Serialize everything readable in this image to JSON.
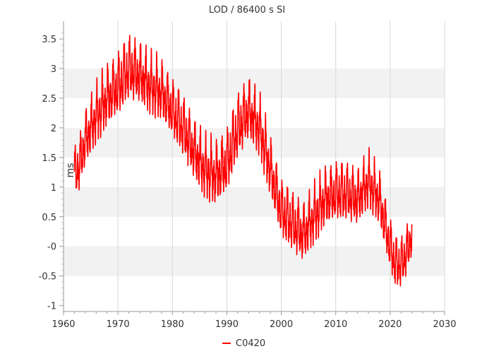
{
  "chart_data": {
    "type": "line",
    "title": "LOD / 86400 s SI",
    "xlabel": "",
    "ylabel": "ms",
    "xlim": [
      1960,
      2030
    ],
    "ylim": [
      -1.1,
      3.8
    ],
    "x_ticks": [
      1960,
      1970,
      1980,
      1990,
      2000,
      2010,
      2020,
      2030
    ],
    "y_ticks": [
      -1,
      -0.5,
      0,
      0.5,
      1,
      1.5,
      2,
      2.5,
      3,
      3.5
    ],
    "x_tick_labels": [
      "1960",
      "1970",
      "1980",
      "1990",
      "2000",
      "2010",
      "2020",
      "2030"
    ],
    "y_tick_labels": [
      "-1",
      "-0.5",
      "-0",
      "0.5",
      "1",
      "1.5",
      "2",
      "2.5",
      "3",
      "3.5"
    ],
    "grid": true,
    "banded_background": true,
    "legend_position": "bottom-center",
    "series": [
      {
        "name": "C0420",
        "color": "#ff0000",
        "trend_x": [
          1962.0,
          1963.0,
          1964.0,
          1966.0,
          1968.0,
          1970.0,
          1972.0,
          1974.0,
          1976.0,
          1978.0,
          1980.0,
          1982.0,
          1984.0,
          1986.0,
          1988.0,
          1990.0,
          1992.0,
          1994.0,
          1996.0,
          1998.0,
          2000.0,
          2002.0,
          2004.0,
          2006.0,
          2008.0,
          2010.0,
          2012.0,
          2014.0,
          2016.0,
          2018.0,
          2020.0,
          2021.0,
          2022.0,
          2023.0,
          2024.0
        ],
        "trend_y": [
          1.2,
          1.4,
          1.8,
          2.2,
          2.5,
          2.7,
          3.0,
          2.9,
          2.7,
          2.6,
          2.3,
          2.0,
          1.6,
          1.3,
          1.2,
          1.4,
          2.0,
          2.3,
          2.0,
          1.3,
          0.6,
          0.4,
          0.2,
          0.5,
          0.8,
          0.9,
          0.9,
          0.8,
          1.1,
          0.8,
          0.0,
          -0.3,
          -0.3,
          -0.1,
          0.2
        ],
        "amplitude_x": [
          1962.0,
          1970.0,
          1980.0,
          1990.0,
          2000.0,
          2010.0,
          2020.0,
          2024.0
        ],
        "amplitude_y": [
          0.45,
          0.55,
          0.5,
          0.55,
          0.5,
          0.5,
          0.45,
          0.4
        ]
      }
    ]
  }
}
